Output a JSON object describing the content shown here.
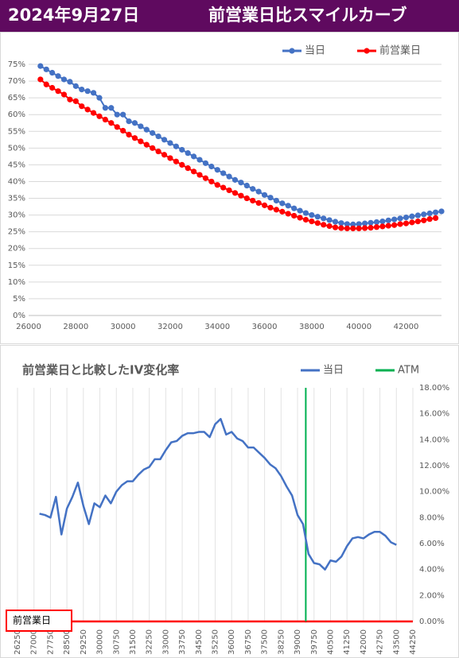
{
  "header": {
    "date": "2024年9月27日",
    "title": "前営業日比スマイルカーブ"
  },
  "chart_data": [
    {
      "type": "line",
      "legend": "top-right",
      "grid": true,
      "marker": "circle",
      "xlim": [
        26000,
        43500
      ],
      "ylim": [
        0,
        75
      ],
      "xticks": [
        26000,
        28000,
        30000,
        32000,
        34000,
        36000,
        38000,
        40000,
        42000
      ],
      "yticks": [
        {
          "value": 0,
          "label": "0%"
        },
        {
          "value": 5,
          "label": "5%"
        },
        {
          "value": 10,
          "label": "10%"
        },
        {
          "value": 15,
          "label": "15%"
        },
        {
          "value": 20,
          "label": "20%"
        },
        {
          "value": 25,
          "label": "25%"
        },
        {
          "value": 30,
          "label": "30%"
        },
        {
          "value": 35,
          "label": "35%"
        },
        {
          "value": 40,
          "label": "40%"
        },
        {
          "value": 45,
          "label": "45%"
        },
        {
          "value": 50,
          "label": "50%"
        },
        {
          "value": 55,
          "label": "55%"
        },
        {
          "value": 60,
          "label": "60%"
        },
        {
          "value": 65,
          "label": "65%"
        },
        {
          "value": 70,
          "label": "70%"
        },
        {
          "value": 75,
          "label": "75%"
        }
      ],
      "x": [
        26500,
        26750,
        27000,
        27250,
        27500,
        27750,
        28000,
        28250,
        28500,
        28750,
        29000,
        29250,
        29500,
        29750,
        30000,
        30250,
        30500,
        30750,
        31000,
        31250,
        31500,
        31750,
        32000,
        32250,
        32500,
        32750,
        33000,
        33250,
        33500,
        33750,
        34000,
        34250,
        34500,
        34750,
        35000,
        35250,
        35500,
        35750,
        36000,
        36250,
        36500,
        36750,
        37000,
        37250,
        37500,
        37750,
        38000,
        38250,
        38500,
        38750,
        39000,
        39250,
        39500,
        39750,
        40000,
        40250,
        40500,
        40750,
        41000,
        41250,
        41500,
        41750,
        42000,
        42250,
        42500,
        42750,
        43000,
        43250,
        43500
      ],
      "series": [
        {
          "name": "当日",
          "color": "#4472c4",
          "values": [
            74.5,
            73.5,
            72.5,
            71.5,
            70.5,
            69.8,
            68.5,
            67.5,
            67,
            66.5,
            65,
            62,
            62,
            60,
            60,
            58,
            57.5,
            56.5,
            55.5,
            54.5,
            53.5,
            52.5,
            51.5,
            50.5,
            49.5,
            48.5,
            47.5,
            46.5,
            45.5,
            44.5,
            43.5,
            42.5,
            41.5,
            40.5,
            39.7,
            38.8,
            37.8,
            37,
            36,
            35.2,
            34.3,
            33.5,
            32.8,
            32,
            31.3,
            30.6,
            30,
            29.5,
            29,
            28.5,
            28,
            27.6,
            27.3,
            27.2,
            27.3,
            27.5,
            27.7,
            27.9,
            28.1,
            28.4,
            28.7,
            29,
            29.3,
            29.6,
            29.9,
            30.2,
            30.5,
            30.8,
            31.1
          ]
        },
        {
          "name": "前営業日",
          "color": "#ff0000",
          "values": [
            70.5,
            69,
            68,
            67,
            66,
            64.5,
            64,
            62.5,
            61.5,
            60.5,
            59.5,
            58.5,
            57.5,
            56.3,
            55.2,
            54,
            53,
            52,
            51,
            50,
            49,
            48,
            47,
            46,
            45,
            44,
            43,
            42,
            41,
            40,
            39,
            38.2,
            37.4,
            36.6,
            35.8,
            35,
            34.3,
            33.6,
            32.9,
            32.2,
            31.6,
            31,
            30.4,
            29.8,
            29.2,
            28.6,
            28.1,
            27.6,
            27.1,
            26.7,
            26.3,
            26.1,
            26,
            26,
            26,
            26.1,
            26.2,
            26.4,
            26.6,
            26.8,
            27,
            27.3,
            27.5,
            27.8,
            28.1,
            28.4,
            28.8,
            29.1,
            null
          ]
        }
      ]
    },
    {
      "type": "line",
      "title": "前営業日と比較したIV変化率",
      "legend": "top-right",
      "grid": true,
      "y_axis_side": "right",
      "xlim": [
        26250,
        44250
      ],
      "ylim": [
        0,
        18
      ],
      "xticks": [
        26250,
        27000,
        27750,
        28500,
        29250,
        30000,
        30750,
        31500,
        32250,
        33000,
        33750,
        34500,
        35250,
        36000,
        36750,
        37500,
        38250,
        39000,
        39750,
        40500,
        41250,
        42000,
        42750,
        43500,
        44250
      ],
      "yticks": [
        {
          "value": 0,
          "label": "0.00%"
        },
        {
          "value": 2,
          "label": "2.00%"
        },
        {
          "value": 4,
          "label": "4.00%"
        },
        {
          "value": 6,
          "label": "6.00%"
        },
        {
          "value": 8,
          "label": "8.00%"
        },
        {
          "value": 10,
          "label": "10.00%"
        },
        {
          "value": 12,
          "label": "12.00%"
        },
        {
          "value": 14,
          "label": "14.00%"
        },
        {
          "value": 16,
          "label": "16.00%"
        },
        {
          "value": 18,
          "label": "18.00%"
        }
      ],
      "x": [
        27250,
        27500,
        27750,
        28000,
        28250,
        28500,
        28750,
        29000,
        29250,
        29500,
        29750,
        30000,
        30250,
        30500,
        30750,
        31000,
        31250,
        31500,
        31750,
        32000,
        32250,
        32500,
        32750,
        33000,
        33250,
        33500,
        33750,
        34000,
        34250,
        34500,
        34750,
        35000,
        35250,
        35500,
        35750,
        36000,
        36250,
        36500,
        36750,
        37000,
        37250,
        37500,
        37750,
        38000,
        38250,
        38500,
        38750,
        39000,
        39250,
        39500,
        39750,
        40000,
        40250,
        40500,
        40750,
        41000,
        41250,
        41500,
        41750,
        42000,
        42250,
        42500,
        42750,
        43000,
        43250,
        43500
      ],
      "series": [
        {
          "name": "当日",
          "color": "#4472c4",
          "values": [
            8.3,
            8.2,
            8.0,
            9.6,
            6.7,
            8.7,
            9.6,
            10.7,
            8.9,
            7.5,
            9.1,
            8.8,
            9.7,
            9.1,
            10.0,
            10.5,
            10.8,
            10.8,
            11.3,
            11.7,
            11.9,
            12.5,
            12.5,
            13.2,
            13.8,
            13.9,
            14.3,
            14.5,
            14.5,
            14.6,
            14.6,
            14.2,
            15.2,
            15.6,
            14.4,
            14.6,
            14.1,
            13.9,
            13.4,
            13.4,
            13.0,
            12.6,
            12.1,
            11.8,
            11.2,
            10.4,
            9.7,
            8.2,
            7.5,
            5.2,
            4.5,
            4.4,
            4.0,
            4.7,
            4.6,
            5.0,
            5.8,
            6.4,
            6.5,
            6.4,
            6.7,
            6.9,
            6.9,
            6.6,
            6.1,
            5.9
          ]
        }
      ],
      "atm": {
        "name": "ATM",
        "x": 39375,
        "color": "#00b050"
      },
      "baseline": {
        "name": "前営業日",
        "value": 0,
        "color": "#ff0000"
      }
    }
  ]
}
